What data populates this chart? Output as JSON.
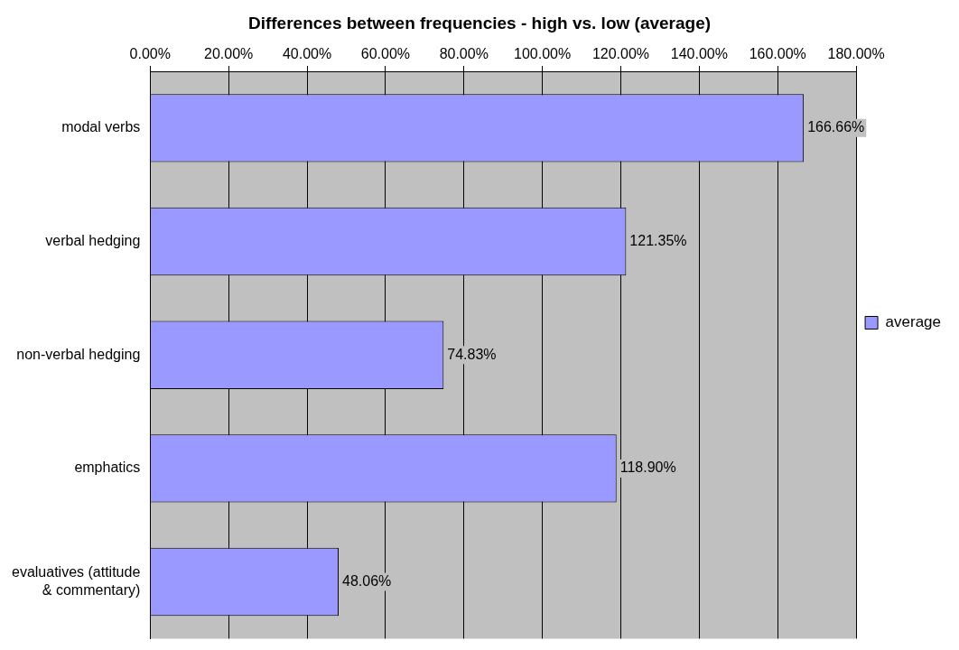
{
  "chart_data": {
    "type": "bar",
    "orientation": "horizontal",
    "title": "Differences between frequencies - high vs. low (average)",
    "categories": [
      "modal verbs",
      "verbal hedging",
      "non-verbal hedging",
      "emphatics",
      "evaluatives (attitude & commentary)"
    ],
    "series": [
      {
        "name": "average",
        "color": "#9999ff",
        "values": [
          166.66,
          121.35,
          74.83,
          118.9,
          48.06
        ],
        "value_labels": [
          "166.66%",
          "121.35%",
          "74.83%",
          "118.90%",
          "48.06%"
        ]
      }
    ],
    "xlim": [
      0,
      180
    ],
    "xticks": [
      {
        "value": 0,
        "label": "0.00%"
      },
      {
        "value": 20,
        "label": "20.00%"
      },
      {
        "value": 40,
        "label": "40.00%"
      },
      {
        "value": 60,
        "label": "60.00%"
      },
      {
        "value": 80,
        "label": "80.00%"
      },
      {
        "value": 100,
        "label": "100.00%"
      },
      {
        "value": 120,
        "label": "120.00%"
      },
      {
        "value": 140,
        "label": "140.00%"
      },
      {
        "value": 160,
        "label": "160.00%"
      },
      {
        "value": 180,
        "label": "180.00%"
      }
    ],
    "grid": "x",
    "legend": "right"
  }
}
